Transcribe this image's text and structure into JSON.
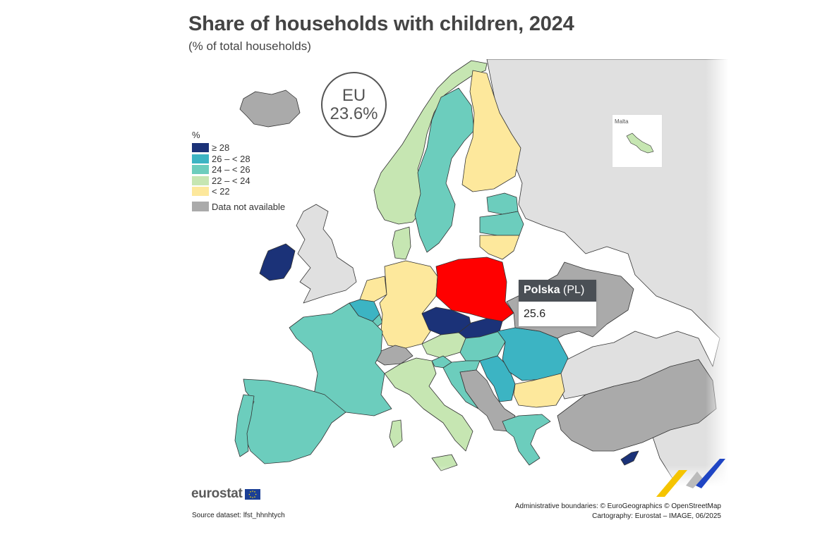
{
  "title": "Share of households with children, 2024",
  "subtitle": "(% of total households)",
  "eu_badge": {
    "label": "EU",
    "value": "23.6%"
  },
  "legend": {
    "unit": "%",
    "classes": [
      {
        "label": "≥ 28",
        "color": "#1b3278"
      },
      {
        "label": "26 – < 28",
        "color": "#3cb4c3"
      },
      {
        "label": "24 – < 26",
        "color": "#6ccdbd"
      },
      {
        "label": "22 – < 24",
        "color": "#c6e6b2"
      },
      {
        "label": "< 22",
        "color": "#fde89c"
      }
    ],
    "not_available": {
      "label": "Data not available",
      "color": "#aaaaaa"
    }
  },
  "map": {
    "non_eu_color": "#e0e0e0",
    "highlight_color": "#ff0000",
    "inset_label": "Malta",
    "regions": [
      {
        "code": "IS",
        "class": "na"
      },
      {
        "code": "NO",
        "class": "22-24"
      },
      {
        "code": "SE",
        "class": "24-26"
      },
      {
        "code": "FI",
        "class": "<22"
      },
      {
        "code": "EE",
        "class": "24-26"
      },
      {
        "code": "LV",
        "class": "24-26"
      },
      {
        "code": "LT",
        "class": "<22"
      },
      {
        "code": "DK",
        "class": "22-24"
      },
      {
        "code": "IE",
        "class": ">=28"
      },
      {
        "code": "UK",
        "class": "non-eu"
      },
      {
        "code": "NL",
        "class": "<22"
      },
      {
        "code": "BE",
        "class": "26-28"
      },
      {
        "code": "LU",
        "class": "24-26"
      },
      {
        "code": "DE",
        "class": "<22"
      },
      {
        "code": "PL",
        "class": "highlighted"
      },
      {
        "code": "CZ",
        "class": ">=28"
      },
      {
        "code": "SK",
        "class": ">=28"
      },
      {
        "code": "AT",
        "class": "22-24"
      },
      {
        "code": "CH",
        "class": "na"
      },
      {
        "code": "FR",
        "class": "24-26"
      },
      {
        "code": "ES",
        "class": "24-26"
      },
      {
        "code": "PT",
        "class": "24-26"
      },
      {
        "code": "IT",
        "class": "22-24"
      },
      {
        "code": "SI",
        "class": "24-26"
      },
      {
        "code": "HU",
        "class": "24-26"
      },
      {
        "code": "HR",
        "class": "24-26"
      },
      {
        "code": "RO",
        "class": "26-28"
      },
      {
        "code": "BG",
        "class": "<22"
      },
      {
        "code": "RS",
        "class": "26-28"
      },
      {
        "code": "EL",
        "class": "24-26"
      },
      {
        "code": "CY",
        "class": ">=28"
      },
      {
        "code": "MT",
        "class": "22-24"
      },
      {
        "code": "UA",
        "class": "na"
      },
      {
        "code": "BY",
        "class": "non-eu"
      },
      {
        "code": "TR",
        "class": "na"
      }
    ]
  },
  "tooltip": {
    "country": "Polska",
    "code": "(PL)",
    "value": "25.6"
  },
  "brand": {
    "name": "eurostat"
  },
  "footer": {
    "source": "Source dataset: lfst_hhnhtych",
    "boundaries": "Administrative boundaries: © EuroGeographics © OpenStreetMap",
    "cartography": "Cartography: Eurostat – IMAGE, 06/2025"
  }
}
